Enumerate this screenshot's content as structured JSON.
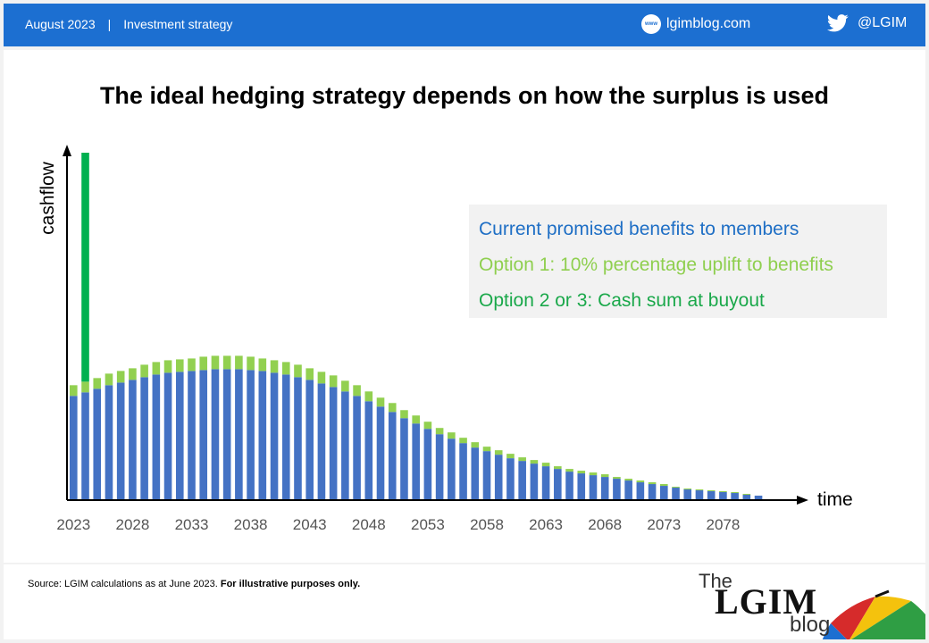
{
  "header": {
    "date": "August 2023",
    "separator": "|",
    "category": "Investment strategy",
    "site_icon": "www",
    "site": "lgimblog.com",
    "twitter": "@LGIM"
  },
  "title": "The ideal hedging strategy depends on how the surplus is used",
  "footer": {
    "source": "Source: LGIM calculations as at June 2023.",
    "note": "For illustrative purposes only.",
    "logo_the": "The",
    "logo_lgim": "LGIM",
    "logo_blog": "blog"
  },
  "colors": {
    "header_bg": "#1c6fd1",
    "benefits": "#4472c4",
    "option1": "#92d050",
    "option2": "#00b050",
    "legend_blue": "#1f6fc5",
    "legend_lightgreen": "#8fcf4f",
    "legend_green": "#1aa84a"
  },
  "chart_data": {
    "type": "bar",
    "stacked": true,
    "xlabel": "time",
    "ylabel": "cashflow",
    "y_axis_scale": "unlabelled",
    "x_tick_labels": [
      "2023",
      "2028",
      "2033",
      "2038",
      "2043",
      "2048",
      "2053",
      "2058",
      "2063",
      "2068",
      "2073",
      "2078"
    ],
    "x": [
      2023,
      2024,
      2025,
      2026,
      2027,
      2028,
      2029,
      2030,
      2031,
      2032,
      2033,
      2034,
      2035,
      2036,
      2037,
      2038,
      2039,
      2040,
      2041,
      2042,
      2043,
      2044,
      2045,
      2046,
      2047,
      2048,
      2049,
      2050,
      2051,
      2052,
      2053,
      2054,
      2055,
      2056,
      2057,
      2058,
      2059,
      2060,
      2061,
      2062,
      2063,
      2064,
      2065,
      2066,
      2067,
      2068,
      2069,
      2070,
      2071,
      2072,
      2073,
      2074,
      2075,
      2076,
      2077,
      2078,
      2079,
      2080,
      2081
    ],
    "series": [
      {
        "name": "Current promised benefits to members",
        "color": "#4472c4",
        "values": [
          116,
          120,
          124,
          128,
          131,
          134,
          137,
          140,
          142,
          143,
          144,
          145,
          146,
          146,
          146,
          145,
          144,
          142,
          140,
          137,
          134,
          130,
          126,
          121,
          116,
          110,
          104,
          98,
          91,
          85,
          79,
          73,
          68,
          63,
          58,
          54,
          50,
          46,
          43,
          40,
          37,
          34,
          31,
          29,
          27,
          25,
          23,
          21,
          19,
          17,
          15,
          13,
          11,
          10,
          9,
          8,
          7,
          5,
          4
        ]
      },
      {
        "name": "Option 1: 10% percentage uplift to benefits",
        "color": "#92d050",
        "values": [
          12,
          12,
          12,
          13,
          13,
          13,
          14,
          14,
          14,
          14,
          14,
          15,
          15,
          15,
          15,
          15,
          14,
          14,
          14,
          14,
          13,
          13,
          13,
          12,
          12,
          11,
          10,
          10,
          9,
          9,
          8,
          7,
          7,
          6,
          6,
          5,
          5,
          5,
          4,
          4,
          4,
          3,
          3,
          3,
          3,
          3,
          2,
          2,
          2,
          2,
          2,
          1,
          1,
          1,
          1,
          1,
          1,
          1,
          0
        ]
      },
      {
        "name": "Option 2 or 3: Cash sum at buyout",
        "color": "#00b050",
        "values": [
          0,
          257,
          0,
          0,
          0,
          0,
          0,
          0,
          0,
          0,
          0,
          0,
          0,
          0,
          0,
          0,
          0,
          0,
          0,
          0,
          0,
          0,
          0,
          0,
          0,
          0,
          0,
          0,
          0,
          0,
          0,
          0,
          0,
          0,
          0,
          0,
          0,
          0,
          0,
          0,
          0,
          0,
          0,
          0,
          0,
          0,
          0,
          0,
          0,
          0,
          0,
          0,
          0,
          0,
          0,
          0,
          0,
          0,
          0
        ]
      }
    ],
    "ylim": [
      0,
      390
    ],
    "grid": false,
    "legend_placement": "top-right"
  }
}
